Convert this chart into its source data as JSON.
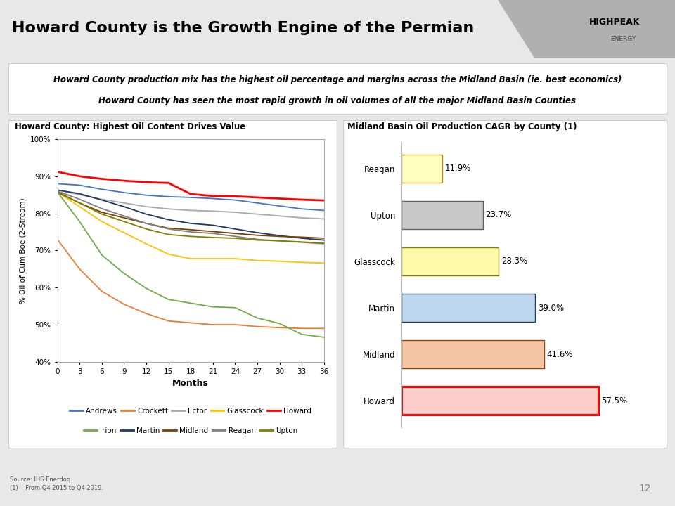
{
  "title": "Howard County is the Growth Engine of the Permian",
  "subtitle_line1": "Howard County production mix has the highest oil percentage and margins across the Midland Basin (ie. best economics)",
  "subtitle_line2": "Howard County has seen the most rapid growth in oil volumes of all the major Midland Basin Counties",
  "left_chart_title": "Howard County: Highest Oil Content Drives Value",
  "right_chart_title": "Midland Basin Oil Production CAGR by County (1)",
  "months": [
    0,
    3,
    6,
    9,
    12,
    15,
    18,
    21,
    24,
    27,
    30,
    33,
    36
  ],
  "line_data": {
    "Andrews": [
      0.88,
      0.876,
      0.865,
      0.856,
      0.849,
      0.845,
      0.843,
      0.84,
      0.836,
      0.828,
      0.82,
      0.812,
      0.808
    ],
    "Crockett": [
      0.73,
      0.65,
      0.59,
      0.555,
      0.53,
      0.51,
      0.505,
      0.5,
      0.5,
      0.495,
      0.492,
      0.49,
      0.49
    ],
    "Ector": [
      0.863,
      0.85,
      0.838,
      0.828,
      0.818,
      0.812,
      0.808,
      0.806,
      0.803,
      0.798,
      0.793,
      0.788,
      0.785
    ],
    "Glasscock": [
      0.858,
      0.818,
      0.778,
      0.748,
      0.718,
      0.69,
      0.678,
      0.678,
      0.678,
      0.673,
      0.671,
      0.668,
      0.666
    ],
    "Howard": [
      0.912,
      0.9,
      0.893,
      0.888,
      0.884,
      0.882,
      0.852,
      0.847,
      0.846,
      0.843,
      0.84,
      0.837,
      0.835
    ],
    "Irion": [
      0.858,
      0.778,
      0.688,
      0.638,
      0.598,
      0.568,
      0.558,
      0.548,
      0.546,
      0.518,
      0.503,
      0.474,
      0.466
    ],
    "Martin": [
      0.863,
      0.853,
      0.836,
      0.818,
      0.798,
      0.783,
      0.773,
      0.768,
      0.758,
      0.748,
      0.74,
      0.733,
      0.728
    ],
    "Midland": [
      0.858,
      0.828,
      0.803,
      0.788,
      0.773,
      0.76,
      0.756,
      0.751,
      0.746,
      0.741,
      0.738,
      0.736,
      0.733
    ],
    "Reagan": [
      0.86,
      0.838,
      0.813,
      0.793,
      0.773,
      0.758,
      0.75,
      0.746,
      0.738,
      0.73,
      0.726,
      0.722,
      0.718
    ],
    "Upton": [
      0.856,
      0.828,
      0.798,
      0.778,
      0.758,
      0.743,
      0.738,
      0.735,
      0.733,
      0.728,
      0.726,
      0.723,
      0.72
    ]
  },
  "line_colors": {
    "Andrews": "#4472C4",
    "Crockett": "#ED7D31",
    "Ector": "#A9A9A9",
    "Glasscock": "#FFC000",
    "Howard": "#FF0000",
    "Irion": "#70AD47",
    "Martin": "#1F3864",
    "Midland": "#7B3F00",
    "Reagan": "#808080",
    "Upton": "#808000"
  },
  "bar_counties": [
    "Howard",
    "Midland",
    "Martin",
    "Glasscock",
    "Upton",
    "Reagan"
  ],
  "bar_values": [
    57.5,
    41.6,
    39.0,
    28.3,
    23.7,
    11.9
  ],
  "bar_colors": [
    "#FFCCCC",
    "#F5C5A3",
    "#BDD7EE",
    "#FFFAAA",
    "#C8C8C8",
    "#FFFFC0"
  ],
  "bar_edge_colors": [
    "#FF0000",
    "#8B4513",
    "#1F3864",
    "#808000",
    "#606060",
    "#B8860B"
  ],
  "bar_labels": [
    "57.5%",
    "41.6%",
    "39.0%",
    "28.3%",
    "23.7%",
    "11.9%"
  ],
  "ylabel_left": "% Oil of Cum Boe (2-Stream)",
  "xlabel_left": "Months",
  "ylim_left": [
    0.4,
    1.0
  ],
  "yticks_left": [
    0.4,
    0.5,
    0.6,
    0.7,
    0.8,
    0.9,
    1.0
  ],
  "ytick_labels_left": [
    "40%",
    "50%",
    "60%",
    "70%",
    "80%",
    "90%",
    "100%"
  ],
  "xticks_left": [
    0,
    3,
    6,
    9,
    12,
    15,
    18,
    21,
    24,
    27,
    30,
    33,
    36
  ],
  "bg_color": "#E8E8E8",
  "header_color": "#DCDCDC",
  "panel_bg": "#FFFFFF",
  "source_text": "Source: IHS Enerdoq.",
  "source_text2": "(1)    From Q4 2015 to Q4 2019.",
  "footer_bar_color": "#4472C4",
  "page_number": "12",
  "legend_order": [
    "Andrews",
    "Crockett",
    "Ector",
    "Glasscock",
    "Howard",
    "Irion",
    "Martin",
    "Midland",
    "Reagan",
    "Upton"
  ]
}
